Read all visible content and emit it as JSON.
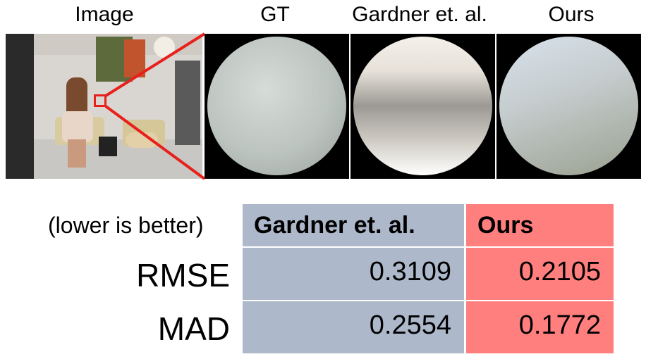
{
  "figure": {
    "column_titles": {
      "image": "Image",
      "gt": "GT",
      "gardner": "Gardner et. al.",
      "ours": "Ours"
    },
    "colors": {
      "marker": "#e8201c",
      "gardner_column": "#adb8ca",
      "ours_column": "#fe7f7e"
    }
  },
  "table": {
    "caption": "(lower is better)",
    "headers": [
      "Gardner et. al.",
      "Ours"
    ],
    "rows": [
      {
        "metric": "RMSE",
        "gardner": "0.3109",
        "ours": "0.2105"
      },
      {
        "metric": "MAD",
        "gardner": "0.2554",
        "ours": "0.1772"
      }
    ]
  }
}
